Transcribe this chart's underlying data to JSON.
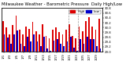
{
  "title": "Milwaukee Weather - Barometric Pressure",
  "subtitle": "Daily High/Low",
  "legend_labels": [
    "High",
    "Low"
  ],
  "legend_colors": [
    "#dd0000",
    "#0000cc"
  ],
  "high_color": "#dd0000",
  "low_color": "#0000cc",
  "background_color": "#ffffff",
  "ylim": [
    29.0,
    30.8
  ],
  "ytick_labels": [
    "29.0",
    "29.2",
    "29.4",
    "29.6",
    "29.8",
    "30.0",
    "30.2",
    "30.4",
    "30.6",
    "30.8"
  ],
  "ytick_vals": [
    29.0,
    29.2,
    29.4,
    29.6,
    29.8,
    30.0,
    30.2,
    30.4,
    30.6,
    30.8
  ],
  "bar_width": 0.42,
  "dashed_vlines": [
    19.5,
    22.5
  ],
  "title_fontsize": 3.8,
  "tick_fontsize": 2.8,
  "legend_fontsize": 3.0,
  "dates": [
    "1/1",
    "1/2",
    "1/3",
    "1/4",
    "1/5",
    "1/6",
    "1/7",
    "1/8",
    "1/9",
    "1/10",
    "1/11",
    "1/12",
    "1/13",
    "1/14",
    "1/15",
    "1/16",
    "1/17",
    "1/18",
    "1/19",
    "1/20",
    "1/21",
    "1/22",
    "1/23",
    "1/24",
    "1/25",
    "1/26",
    "1/27",
    "1/28",
    "1/29",
    "1/30"
  ],
  "highs": [
    30.28,
    30.0,
    29.72,
    30.1,
    30.48,
    29.9,
    29.72,
    30.05,
    29.95,
    30.22,
    29.85,
    29.72,
    30.12,
    29.65,
    29.55,
    29.92,
    30.02,
    29.82,
    29.72,
    29.92,
    30.12,
    29.65,
    29.55,
    30.05,
    29.85,
    30.25,
    30.42,
    30.05,
    29.92,
    30.35
  ],
  "lows": [
    29.72,
    29.6,
    29.32,
    29.72,
    29.88,
    29.32,
    29.22,
    29.62,
    29.42,
    29.72,
    29.42,
    29.22,
    29.62,
    29.12,
    29.05,
    29.45,
    29.52,
    29.32,
    29.22,
    29.42,
    29.62,
    29.15,
    29.05,
    29.52,
    29.32,
    29.62,
    29.52,
    29.52,
    29.22,
    29.12
  ]
}
